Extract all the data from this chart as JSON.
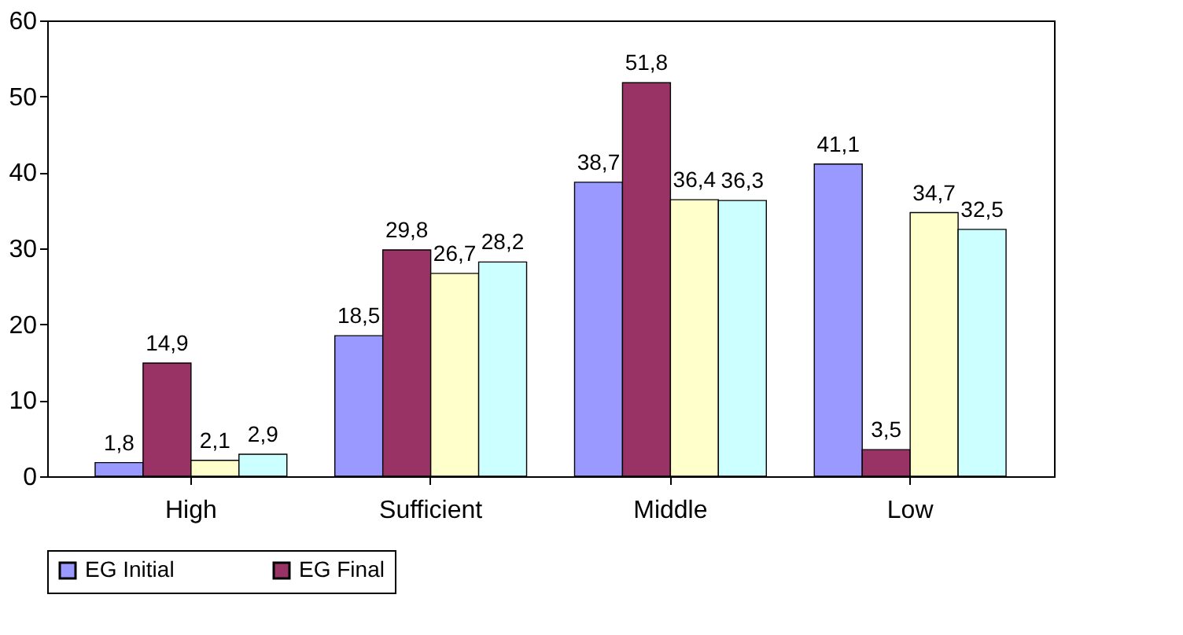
{
  "chart_data": {
    "type": "bar",
    "categories": [
      "High",
      "Sufficient",
      "Middle",
      "Low"
    ],
    "series": [
      {
        "name": "EG Initial",
        "color": "#9999ff",
        "values": [
          1.8,
          18.5,
          38.7,
          41.1
        ],
        "value_labels": [
          "1,8",
          "18,5",
          "38,7",
          "41,1"
        ]
      },
      {
        "name": "EG Final",
        "color": "#993366",
        "values": [
          14.9,
          29.8,
          51.8,
          3.5
        ],
        "value_labels": [
          "14,9",
          "29,8",
          "51,8",
          "3,5"
        ]
      },
      {
        "color": "#ffffcc",
        "values": [
          2.1,
          26.7,
          36.4,
          34.7
        ],
        "value_labels": [
          "2,1",
          "26,7",
          "36,4",
          "34,7"
        ]
      },
      {
        "color": "#ccffff",
        "values": [
          2.9,
          28.2,
          36.3,
          32.5
        ],
        "value_labels": [
          "2,9",
          "28,2",
          "36,3",
          "32,5"
        ]
      }
    ],
    "ylim": [
      0,
      60
    ],
    "yticks": [
      0,
      10,
      20,
      30,
      40,
      50,
      60
    ],
    "grid": false,
    "legend": "bottom"
  }
}
